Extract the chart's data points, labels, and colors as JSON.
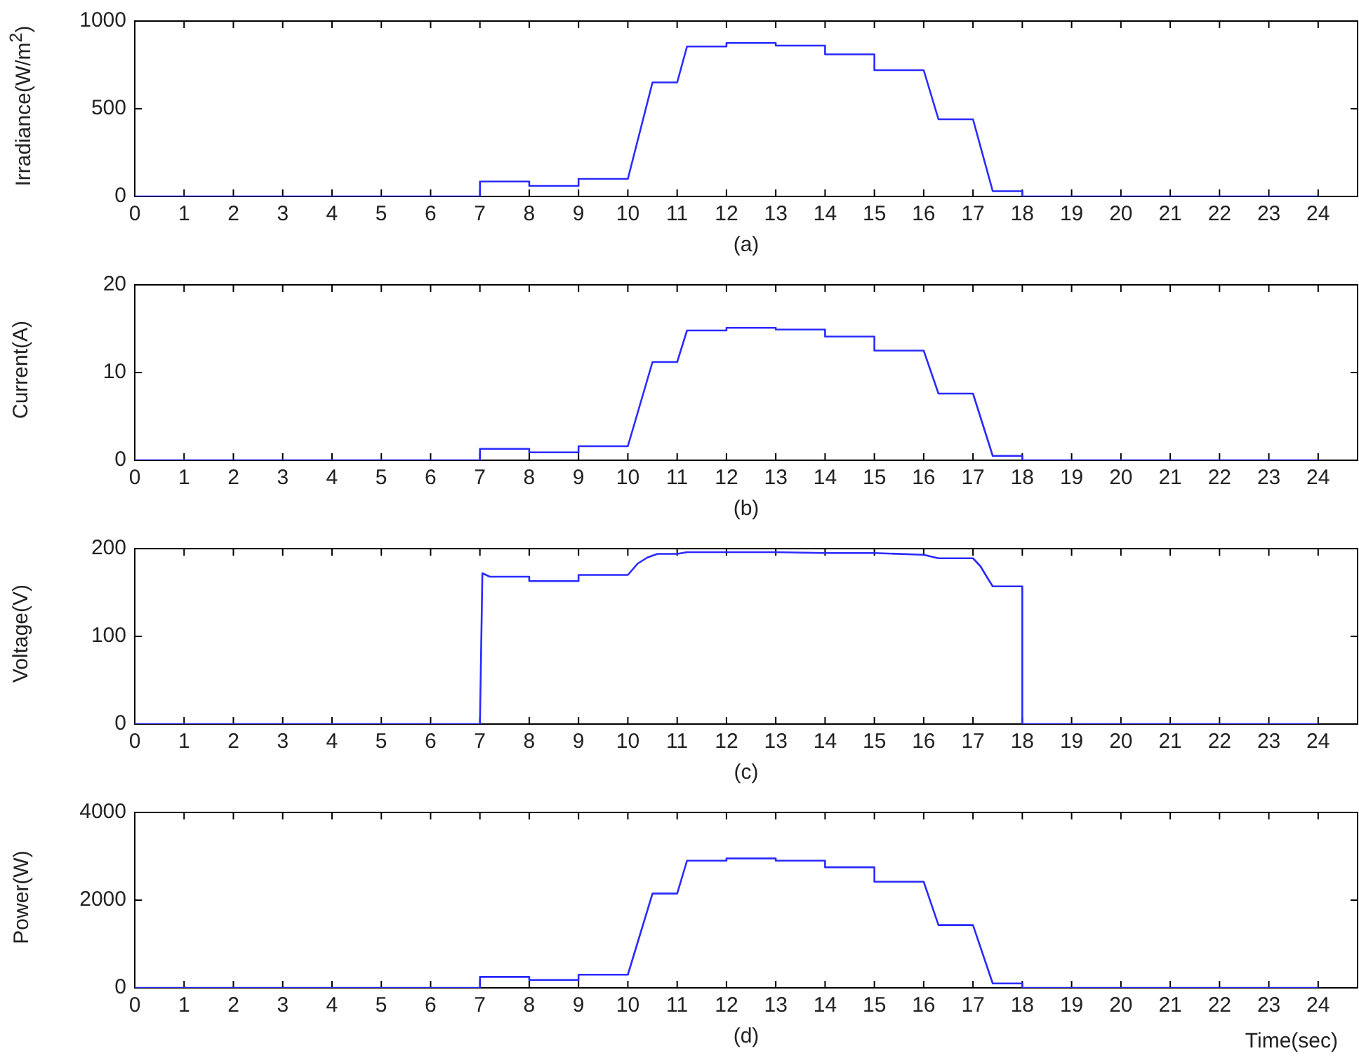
{
  "chart_data": [
    {
      "type": "line",
      "ylabel": "Irradiance(W/m$^{2}$)",
      "xlabel": "(a)",
      "xlim": [
        0,
        24.8
      ],
      "xticks": [
        0,
        1,
        2,
        3,
        4,
        5,
        6,
        7,
        8,
        9,
        10,
        11,
        12,
        13,
        14,
        15,
        16,
        17,
        18,
        19,
        20,
        21,
        22,
        23,
        24
      ],
      "ylim": [
        0,
        1000
      ],
      "yticks": [
        0,
        500,
        1000
      ],
      "grid": false,
      "legend": false,
      "marker": "none",
      "line_style": "solid",
      "series": [
        {
          "color": "#2a2aff",
          "x": [
            0,
            7,
            7,
            8,
            8,
            9,
            9,
            10,
            10.5,
            11,
            11.2,
            12,
            12,
            13,
            13,
            14,
            14,
            15,
            15,
            16,
            16.3,
            17,
            17.4,
            18,
            18,
            24
          ],
          "values": [
            0,
            0,
            85,
            85,
            60,
            60,
            100,
            100,
            650,
            650,
            855,
            855,
            875,
            875,
            860,
            860,
            810,
            810,
            720,
            720,
            440,
            440,
            30,
            30,
            0,
            0
          ]
        }
      ]
    },
    {
      "type": "line",
      "ylabel": "Current(A)",
      "xlabel": "(b)",
      "xlim": [
        0,
        24.8
      ],
      "xticks": [
        0,
        1,
        2,
        3,
        4,
        5,
        6,
        7,
        8,
        9,
        10,
        11,
        12,
        13,
        14,
        15,
        16,
        17,
        18,
        19,
        20,
        21,
        22,
        23,
        24
      ],
      "ylim": [
        0,
        20
      ],
      "yticks": [
        0,
        10,
        20
      ],
      "grid": false,
      "legend": false,
      "marker": "none",
      "line_style": "solid",
      "series": [
        {
          "color": "#2a2aff",
          "x": [
            0,
            7,
            7,
            8,
            8,
            9,
            9,
            10,
            10.5,
            11,
            11.2,
            12,
            12,
            13,
            13,
            14,
            14,
            15,
            15,
            16,
            16.3,
            17,
            17.4,
            18,
            18,
            24
          ],
          "values": [
            0,
            0,
            1.3,
            1.3,
            0.9,
            0.9,
            1.6,
            1.6,
            11.2,
            11.2,
            14.8,
            14.8,
            15.1,
            15.1,
            14.9,
            14.9,
            14.1,
            14.1,
            12.5,
            12.5,
            7.6,
            7.6,
            0.5,
            0.5,
            0,
            0
          ]
        }
      ]
    },
    {
      "type": "line",
      "ylabel": "Voltage(V)",
      "xlabel": "(c)",
      "xlim": [
        0,
        24.8
      ],
      "xticks": [
        0,
        1,
        2,
        3,
        4,
        5,
        6,
        7,
        8,
        9,
        10,
        11,
        12,
        13,
        14,
        15,
        16,
        17,
        18,
        19,
        20,
        21,
        22,
        23,
        24
      ],
      "ylim": [
        0,
        200
      ],
      "yticks": [
        0,
        100,
        200
      ],
      "grid": false,
      "legend": false,
      "marker": "none",
      "line_style": "solid",
      "series": [
        {
          "color": "#2a2aff",
          "x": [
            0,
            7,
            7.05,
            7.2,
            8,
            8,
            9,
            9,
            10,
            10.2,
            10.4,
            10.6,
            11,
            11.2,
            12,
            13,
            14,
            15,
            16,
            16.3,
            17,
            17.15,
            17.3,
            17.4,
            18,
            18,
            24
          ],
          "values": [
            0,
            0,
            172,
            168,
            168,
            163,
            163,
            170,
            170,
            183,
            190,
            194,
            194,
            196,
            196,
            196,
            195,
            195,
            193,
            189,
            189,
            180,
            166,
            157,
            157,
            0,
            0
          ]
        }
      ]
    },
    {
      "type": "line",
      "ylabel": "Power(W)",
      "xlabel": "(d)",
      "annotations": [
        "Time(sec)"
      ],
      "xlim": [
        0,
        24.8
      ],
      "xticks": [
        0,
        1,
        2,
        3,
        4,
        5,
        6,
        7,
        8,
        9,
        10,
        11,
        12,
        13,
        14,
        15,
        16,
        17,
        18,
        19,
        20,
        21,
        22,
        23,
        24
      ],
      "ylim": [
        0,
        4000
      ],
      "yticks": [
        0,
        2000,
        4000
      ],
      "grid": false,
      "legend": false,
      "marker": "none",
      "line_style": "solid",
      "series": [
        {
          "color": "#2a2aff",
          "x": [
            0,
            7,
            7,
            8,
            8,
            9,
            9,
            10,
            10.5,
            11,
            11.2,
            12,
            12,
            13,
            13,
            14,
            14,
            15,
            15,
            16,
            16.3,
            17,
            17.4,
            18,
            18,
            24
          ],
          "values": [
            0,
            0,
            250,
            250,
            180,
            180,
            300,
            300,
            2150,
            2150,
            2900,
            2900,
            2950,
            2950,
            2900,
            2900,
            2750,
            2750,
            2420,
            2420,
            1430,
            1430,
            100,
            100,
            0,
            0
          ]
        }
      ]
    }
  ]
}
